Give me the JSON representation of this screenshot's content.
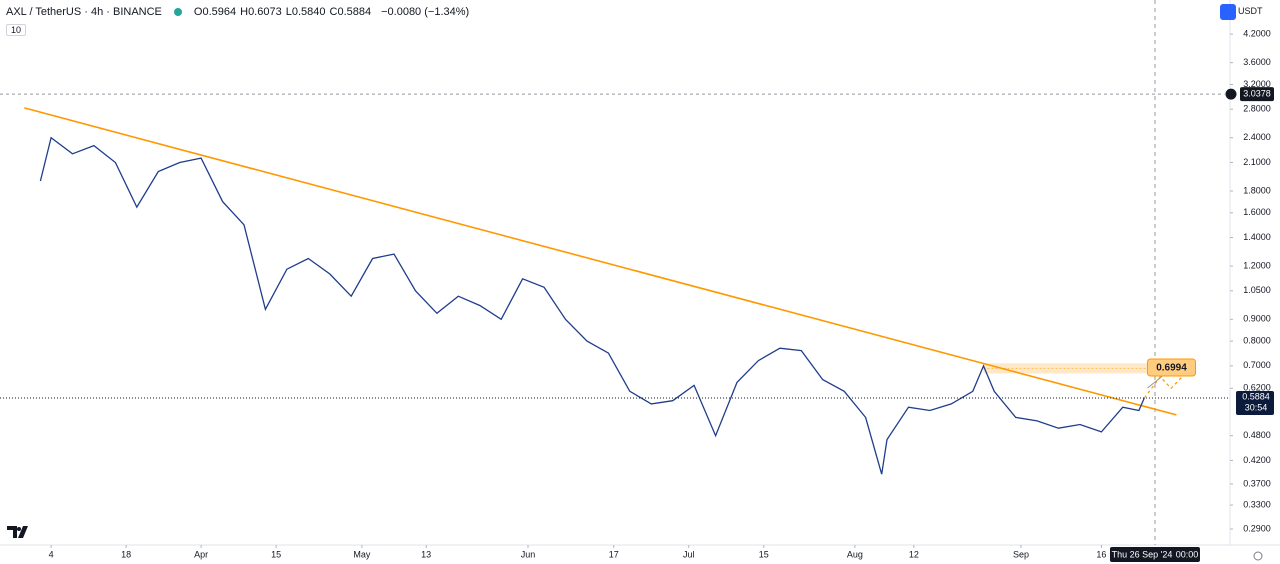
{
  "header": {
    "symbol": "AXL / TetherUS · 4h · BINANCE",
    "ohlc": [
      {
        "label": "O",
        "value": "0.5964"
      },
      {
        "label": "H",
        "value": "0.6073"
      },
      {
        "label": "L",
        "value": "0.5840"
      },
      {
        "label": "C",
        "value": "0.5884"
      }
    ],
    "change": "−0.0080 (−1.34%)",
    "indicator": "10"
  },
  "toolbar": {
    "currency": "USDT"
  },
  "crosshair": {
    "date": "Thu 26 Sep '24",
    "time": "00:00"
  },
  "countdown": "30:54",
  "chart_data": {
    "type": "line",
    "log_y": true,
    "color": "#1f3d8c",
    "x": [
      -2,
      0,
      4,
      8,
      12,
      16,
      20,
      24,
      28,
      32,
      36,
      40,
      44,
      48,
      52,
      56,
      60,
      64,
      68,
      72,
      76,
      80,
      84,
      88,
      92,
      96,
      100,
      104,
      108,
      112,
      116,
      120,
      124,
      128,
      132,
      136,
      140,
      144,
      148,
      152,
      155,
      156,
      160,
      164,
      168,
      172,
      174,
      176,
      180,
      184,
      188,
      192,
      196,
      200,
      203,
      204
    ],
    "values": [
      1.9,
      2.4,
      2.2,
      2.3,
      2.1,
      1.65,
      2.0,
      2.1,
      2.15,
      1.7,
      1.5,
      0.95,
      1.18,
      1.25,
      1.15,
      1.02,
      1.25,
      1.28,
      1.05,
      0.93,
      1.02,
      0.97,
      0.9,
      1.12,
      1.07,
      0.9,
      0.8,
      0.75,
      0.61,
      0.57,
      0.58,
      0.63,
      0.48,
      0.64,
      0.72,
      0.77,
      0.76,
      0.65,
      0.61,
      0.53,
      0.39,
      0.47,
      0.56,
      0.55,
      0.57,
      0.61,
      0.7,
      0.61,
      0.53,
      0.52,
      0.5,
      0.51,
      0.49,
      0.56,
      0.55,
      0.5884
    ],
    "xlim": [
      -3,
      220
    ],
    "ylim": [
      0.266,
      5.05
    ],
    "xticks": [
      {
        "value": 0,
        "label": "4"
      },
      {
        "value": 14,
        "label": "18"
      },
      {
        "value": 28,
        "label": "Apr"
      },
      {
        "value": 42,
        "label": "15"
      },
      {
        "value": 58,
        "label": "May"
      },
      {
        "value": 70,
        "label": "13"
      },
      {
        "value": 89,
        "label": "Jun"
      },
      {
        "value": 105,
        "label": "17"
      },
      {
        "value": 119,
        "label": "Jul"
      },
      {
        "value": 133,
        "label": "15"
      },
      {
        "value": 150,
        "label": "Aug"
      },
      {
        "value": 161,
        "label": "12"
      },
      {
        "value": 181,
        "label": "Sep"
      },
      {
        "value": 196,
        "label": "16"
      }
    ],
    "yticks": [
      {
        "value": 4.2,
        "label": "4.2000"
      },
      {
        "value": 3.6,
        "label": "3.6000"
      },
      {
        "value": 3.2,
        "label": "3.2000"
      },
      {
        "value": 2.8,
        "label": "2.8000"
      },
      {
        "value": 2.4,
        "label": "2.4000"
      },
      {
        "value": 2.1,
        "label": "2.1000"
      },
      {
        "value": 1.8,
        "label": "1.8000"
      },
      {
        "value": 1.6,
        "label": "1.6000"
      },
      {
        "value": 1.4,
        "label": "1.4000"
      },
      {
        "value": 1.2,
        "label": "1.2000"
      },
      {
        "value": 1.05,
        "label": "1.0500"
      },
      {
        "value": 0.9,
        "label": "0.9000"
      },
      {
        "value": 0.8,
        "label": "0.8000"
      },
      {
        "value": 0.7,
        "label": "0.7000"
      },
      {
        "value": 0.62,
        "label": "0.6200"
      },
      {
        "value": 0.48,
        "label": "0.4800"
      },
      {
        "value": 0.42,
        "label": "0.4200"
      },
      {
        "value": 0.37,
        "label": "0.3700"
      },
      {
        "value": 0.33,
        "label": "0.3300"
      },
      {
        "value": 0.29,
        "label": "0.2900"
      }
    ],
    "trendline": {
      "x": [
        -5,
        210
      ],
      "values": [
        2.82,
        0.537
      ],
      "color": "#ff9800"
    },
    "zone": {
      "x": [
        174,
        207
      ],
      "values": [
        0.672,
        0.71
      ]
    },
    "projection": {
      "x": [
        204,
        207,
        209,
        213
      ],
      "values": [
        0.5884,
        0.66,
        0.62,
        0.6994
      ]
    },
    "target": 0.6994,
    "hline": 3.0378,
    "last_price": 0.5884,
    "cursor_x": 206
  }
}
